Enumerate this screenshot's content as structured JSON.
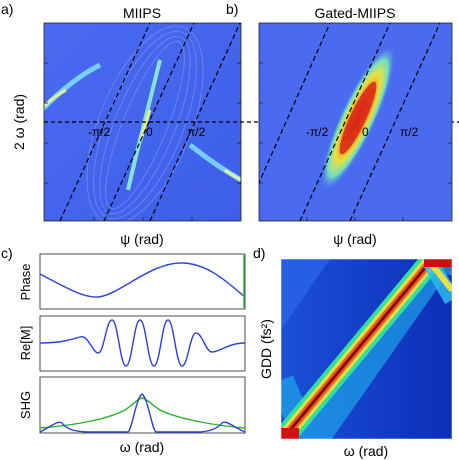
{
  "panels": {
    "a": {
      "letter": "a)",
      "title": "MIIPS",
      "xlabel": "ψ (rad)",
      "ylabel": "2 ω (rad)",
      "annotations": [
        "-π/2",
        "0",
        "π/2"
      ]
    },
    "b": {
      "letter": "b)",
      "title": "Gated-MIIPS",
      "xlabel": "ψ (rad)",
      "annotations": [
        "-π/2",
        "0",
        "π/2"
      ]
    },
    "c": {
      "letter": "c)",
      "xlabel": "ω (rad)",
      "rows": [
        {
          "ylabel": "Phase"
        },
        {
          "ylabel": "Re[M]"
        },
        {
          "ylabel": "SHG"
        }
      ]
    },
    "d": {
      "letter": "d)",
      "xlabel": "ω (rad)",
      "ylabel": "GDD (fs²)"
    }
  },
  "colors": {
    "trace_blue": "#2a3fe0",
    "trace_green": "#27b427",
    "bg_blue": "#4a6bf0",
    "dark_blue": "#0a1a9a",
    "hot_red": "#d41010"
  },
  "chart_data": [
    {
      "type": "heatmap",
      "panel": "a",
      "title": "MIIPS",
      "xlabel": "ψ (rad)",
      "ylabel": "2 ω (rad)"
    },
    {
      "type": "heatmap",
      "panel": "b",
      "title": "Gated-MIIPS",
      "xlabel": "ψ (rad)"
    },
    {
      "type": "line",
      "panel": "c-phase",
      "ylabel": "Phase",
      "series": [
        {
          "points": "cosine-like phase across ω, min near left-center, max near right-center"
        }
      ]
    },
    {
      "type": "line",
      "panel": "c-rem",
      "ylabel": "Re[M]"
    },
    {
      "type": "line",
      "panel": "c-shg",
      "ylabel": "SHG",
      "xlabel": "ω (rad)"
    },
    {
      "type": "heatmap",
      "panel": "d",
      "xlabel": "ω (rad)",
      "ylabel": "GDD (fs²)"
    }
  ]
}
